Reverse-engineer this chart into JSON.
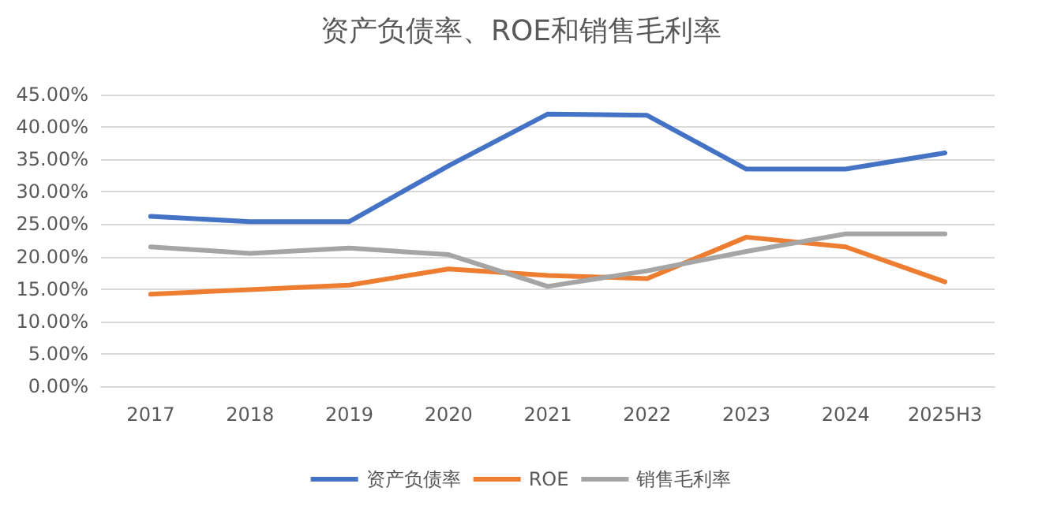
{
  "chart_data": {
    "type": "line",
    "title": "资产负债率、ROE和销售毛利率",
    "categories": [
      "2017",
      "2018",
      "2019",
      "2020",
      "2021",
      "2022",
      "2023",
      "2024",
      "2025H3"
    ],
    "series": [
      {
        "name": "资产负债率",
        "color": "#4472c4",
        "values": [
          26.2,
          25.4,
          25.4,
          34,
          42,
          41.8,
          33.5,
          33.5,
          36
        ]
      },
      {
        "name": "ROE",
        "color": "#ed7d31",
        "values": [
          14.2,
          14.9,
          15.6,
          18.1,
          17.1,
          16.6,
          23,
          21.5,
          16.1
        ]
      },
      {
        "name": "销售毛利率",
        "color": "#a5a5a5",
        "values": [
          21.5,
          20.5,
          21.3,
          20.3,
          15.4,
          17.8,
          20.8,
          23.5,
          23.5
        ]
      }
    ],
    "ylim": [
      0,
      45
    ],
    "yticks": [
      {
        "value": 0,
        "label": "0.00%"
      },
      {
        "value": 5,
        "label": "5.00%"
      },
      {
        "value": 10,
        "label": "10.00%"
      },
      {
        "value": 15,
        "label": "15.00%"
      },
      {
        "value": 20,
        "label": "20.00%"
      },
      {
        "value": 25,
        "label": "25.00%"
      },
      {
        "value": 30,
        "label": "30.00%"
      },
      {
        "value": 35,
        "label": "35.00%"
      },
      {
        "value": 40,
        "label": "40.00%"
      },
      {
        "value": 45,
        "label": "45.00%"
      }
    ],
    "grid": "y",
    "legend": "bottom",
    "marker": "none",
    "line_style": "solid"
  }
}
